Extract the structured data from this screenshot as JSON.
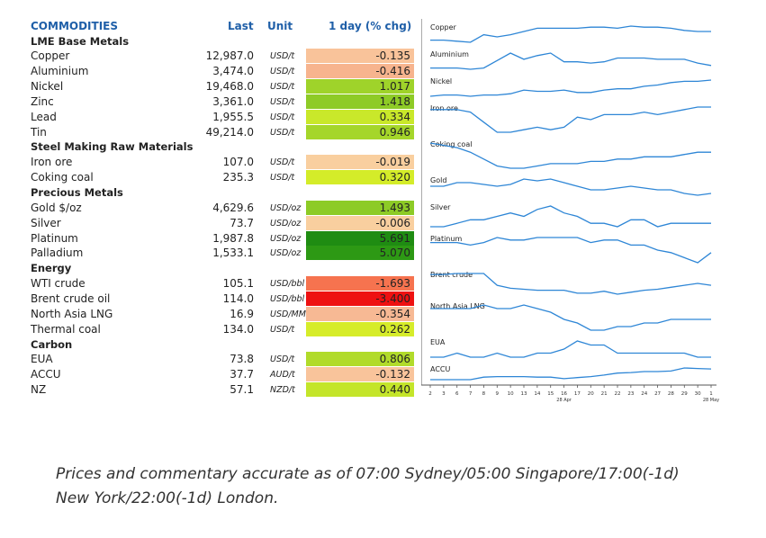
{
  "header": {
    "commodities": "COMMODITIES",
    "last": "Last",
    "unit": "Unit",
    "chg": "1 day (% chg)"
  },
  "rows": [
    {
      "type": "section",
      "name": "LME Base Metals"
    },
    {
      "type": "item",
      "name": "Copper",
      "last": "12,987.0",
      "unit": "USD/t",
      "chg": "-0.135",
      "color": "#f9c39a"
    },
    {
      "type": "item",
      "name": "Aluminium",
      "last": "3,474.0",
      "unit": "USD/t",
      "chg": "-0.416",
      "color": "#f7b48e"
    },
    {
      "type": "item",
      "name": "Nickel",
      "last": "19,468.0",
      "unit": "USD/t",
      "chg": "1.017",
      "color": "#9fd32a"
    },
    {
      "type": "item",
      "name": "Zinc",
      "last": "3,361.0",
      "unit": "USD/t",
      "chg": "1.418",
      "color": "#8ecb26"
    },
    {
      "type": "item",
      "name": "Lead",
      "last": "1,955.5",
      "unit": "USD/t",
      "chg": "0.334",
      "color": "#c9e82a"
    },
    {
      "type": "item",
      "name": "Tin",
      "last": "49,214.0",
      "unit": "USD/t",
      "chg": "0.946",
      "color": "#a5d62a"
    },
    {
      "type": "section",
      "name": "Steel Making Raw Materials"
    },
    {
      "type": "item",
      "name": "Iron ore",
      "last": "107.0",
      "unit": "USD/t",
      "chg": "-0.019",
      "color": "#f9cf9f"
    },
    {
      "type": "item",
      "name": "Coking coal",
      "last": "235.3",
      "unit": "USD/t",
      "chg": "0.320",
      "color": "#d4ec29"
    },
    {
      "type": "section",
      "name": "Precious Metals"
    },
    {
      "type": "item",
      "name": "Gold $/oz",
      "last": "4,629.6",
      "unit": "USD/oz",
      "chg": "1.493",
      "color": "#8dcb26"
    },
    {
      "type": "item",
      "name": "Silver",
      "last": "73.7",
      "unit": "USD/oz",
      "chg": "-0.006",
      "color": "#f9cf9f"
    },
    {
      "type": "item",
      "name": "Platinum",
      "last": "1,987.8",
      "unit": "USD/oz",
      "chg": "5.691",
      "color": "#1f8c12"
    },
    {
      "type": "item",
      "name": "Palladium",
      "last": "1,533.1",
      "unit": "USD/oz",
      "chg": "5.070",
      "color": "#2d9914"
    },
    {
      "type": "section",
      "name": "Energy"
    },
    {
      "type": "item",
      "name": "WTI crude",
      "last": "105.1",
      "unit": "USD/bbl",
      "chg": "-1.693",
      "color": "#f6734f"
    },
    {
      "type": "item",
      "name": "Brent crude oil",
      "last": "114.0",
      "unit": "USD/bbl",
      "chg": "-3.400",
      "color": "#ee1111"
    },
    {
      "type": "item",
      "name": "North Asia LNG",
      "last": "16.9",
      "unit": "USD/MMBtu",
      "chg": "-0.354",
      "color": "#f7b994"
    },
    {
      "type": "item",
      "name": "Thermal coal",
      "last": "134.0",
      "unit": "USD/t",
      "chg": "0.262",
      "color": "#d6ec2a"
    },
    {
      "type": "section",
      "name": "Carbon"
    },
    {
      "type": "item",
      "name": "EUA",
      "last": "73.8",
      "unit": "USD/t",
      "chg": "0.806",
      "color": "#b1db2a"
    },
    {
      "type": "item",
      "name": "ACCU",
      "last": "37.7",
      "unit": "AUD/t",
      "chg": "-0.132",
      "color": "#f9c49b"
    },
    {
      "type": "item",
      "name": "NZ",
      "last": "57.1",
      "unit": "NZD/t",
      "chg": "0.440",
      "color": "#c4e52a"
    }
  ],
  "chart_data": {
    "type": "line",
    "x_ticks": [
      "2",
      "3",
      "6",
      "7",
      "8",
      "9",
      "10",
      "13",
      "14",
      "15",
      "16",
      "17",
      "20",
      "21",
      "22",
      "23",
      "24",
      "27",
      "28",
      "29",
      "30",
      "1"
    ],
    "x_month_labels": [
      {
        "tick": "16",
        "text": "28 Apr"
      },
      {
        "tick": "1",
        "text": "28 May"
      }
    ],
    "line_color": "#2e86d6",
    "series": [
      {
        "name": "Copper",
        "values": [
          42,
          42,
          41,
          40,
          47,
          45,
          47,
          50,
          53,
          53,
          53,
          53,
          54,
          54,
          53,
          55,
          54,
          54,
          53,
          51,
          50,
          50
        ]
      },
      {
        "name": "Aluminium",
        "values": [
          46,
          46,
          46,
          45,
          46,
          52,
          58,
          53,
          56,
          58,
          51,
          51,
          50,
          51,
          54,
          54,
          54,
          53,
          53,
          53,
          50,
          48
        ]
      },
      {
        "name": "Nickel",
        "values": [
          47,
          48,
          48,
          47,
          48,
          48,
          49,
          52,
          51,
          51,
          52,
          50,
          50,
          52,
          53,
          53,
          55,
          56,
          58,
          59,
          59,
          60
        ]
      },
      {
        "name": "Iron ore",
        "values": [
          52,
          52,
          52,
          51,
          47,
          43,
          43,
          44,
          45,
          44,
          45,
          49,
          48,
          50,
          50,
          50,
          51,
          50,
          51,
          52,
          53,
          53
        ]
      },
      {
        "name": "Coking coal",
        "values": [
          49,
          48,
          47,
          45,
          42,
          39,
          38,
          38,
          39,
          40,
          40,
          40,
          41,
          41,
          42,
          42,
          43,
          43,
          43,
          44,
          45,
          45
        ]
      },
      {
        "name": "Gold",
        "values": [
          45,
          45,
          47,
          47,
          46,
          45,
          46,
          49,
          48,
          49,
          47,
          45,
          43,
          43,
          44,
          45,
          44,
          43,
          43,
          41,
          40,
          41
        ]
      },
      {
        "name": "Silver",
        "values": [
          44,
          44,
          45,
          46,
          46,
          47,
          48,
          47,
          49,
          50,
          48,
          47,
          45,
          45,
          44,
          46,
          46,
          44,
          45,
          45,
          45,
          45
        ]
      },
      {
        "name": "Platinum",
        "values": [
          48,
          48,
          48,
          47,
          48,
          50,
          49,
          49,
          50,
          50,
          50,
          50,
          48,
          49,
          49,
          47,
          47,
          45,
          44,
          42,
          40,
          44
        ]
      },
      {
        "name": "Brent crude",
        "values": [
          66,
          66,
          67,
          67,
          67,
          55,
          52,
          51,
          50,
          50,
          50,
          47,
          47,
          49,
          46,
          48,
          50,
          51,
          53,
          55,
          57,
          55
        ]
      },
      {
        "name": "North Asia LNG",
        "values": [
          47,
          47,
          47,
          47,
          48,
          47,
          47,
          48,
          47,
          46,
          44,
          43,
          41,
          41,
          42,
          42,
          43,
          43,
          44,
          44,
          44,
          44
        ]
      },
      {
        "name": "EUA",
        "values": [
          66,
          66,
          67,
          66,
          66,
          67,
          66,
          66,
          67,
          67,
          68,
          70,
          69,
          69,
          67,
          67,
          67,
          67,
          67,
          67,
          66,
          66
        ]
      },
      {
        "name": "ACCU",
        "values": [
          38,
          38,
          38,
          38,
          38.5,
          38.6,
          38.6,
          38.6,
          38.5,
          38.5,
          38.2,
          38.4,
          38.6,
          38.9,
          39.3,
          39.4,
          39.6,
          39.6,
          39.7,
          40.3,
          40.2,
          40.1
        ]
      }
    ]
  },
  "footer": {
    "line1": "Prices and commentary accurate as of 07:00 Sydney/05:00 Singapore/17:00(-1d)",
    "line2": "New York/22:00(-1d) London."
  }
}
